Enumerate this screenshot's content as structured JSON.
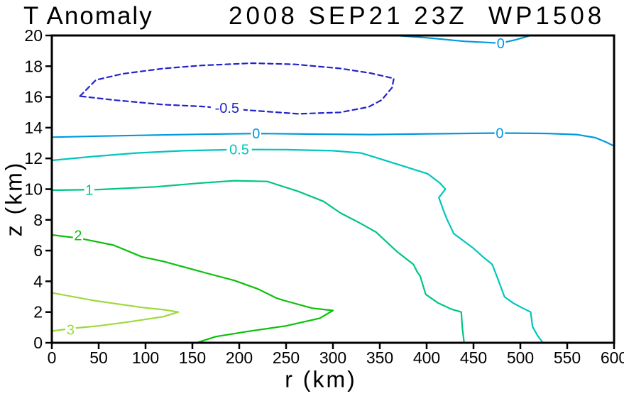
{
  "title": {
    "left": "T Anomaly",
    "right": "2008 SEP21 23Z  WP1508"
  },
  "axis_labels": {
    "x": "r (km)",
    "y": "z (km)"
  },
  "chart_data": {
    "type": "contour",
    "title": "T Anomaly",
    "subtitle": "2008 SEP21 23Z  WP1508",
    "xlabel": "r (km)",
    "ylabel": "z (km)",
    "xlim": [
      0,
      600
    ],
    "ylim": [
      0,
      20
    ],
    "xticks": [
      0,
      50,
      100,
      150,
      200,
      250,
      300,
      350,
      400,
      450,
      500,
      550,
      600
    ],
    "yticks": [
      0,
      2,
      4,
      6,
      8,
      10,
      12,
      14,
      16,
      18,
      20
    ],
    "grid": false,
    "frame_color": "#000000",
    "legend": "none",
    "levels": [
      {
        "level": -0.5,
        "color": "#2323cd",
        "style": "dashed",
        "paths": [
          [
            [
              30,
              16.05
            ],
            [
              47,
              17.1
            ],
            [
              75,
              17.5
            ],
            [
              119,
              17.85
            ],
            [
              160,
              18.05
            ],
            [
              214,
              18.2
            ],
            [
              260,
              18.12
            ],
            [
              308,
              17.85
            ],
            [
              340,
              17.55
            ],
            [
              365,
              17.2
            ],
            [
              363,
              16.6
            ],
            [
              352,
              15.8
            ],
            [
              338,
              15.35
            ],
            [
              308,
              15.0
            ],
            [
              263,
              14.9
            ],
            [
              214,
              15.12
            ],
            [
              160,
              15.38
            ],
            [
              119,
              15.5
            ],
            [
              66,
              15.8
            ],
            [
              30,
              16.05
            ]
          ]
        ],
        "labels": [
          {
            "text": "-0.5",
            "r": 187,
            "z": 15.28
          }
        ]
      },
      {
        "level": 0,
        "color": "#0099dd",
        "style": "solid",
        "paths": [
          [
            [
              0,
              13.38
            ],
            [
              50,
              13.45
            ],
            [
              110,
              13.52
            ],
            [
              160,
              13.57
            ],
            [
              218,
              13.62
            ],
            [
              280,
              13.58
            ],
            [
              340,
              13.55
            ],
            [
              400,
              13.6
            ],
            [
              478,
              13.65
            ],
            [
              530,
              13.62
            ],
            [
              560,
              13.55
            ],
            [
              580,
              13.35
            ],
            [
              592,
              13.05
            ],
            [
              600,
              12.8
            ]
          ],
          [
            [
              367,
              20
            ],
            [
              400,
              19.85
            ],
            [
              440,
              19.62
            ],
            [
              479,
              19.5
            ],
            [
              495,
              19.72
            ],
            [
              511,
              20
            ]
          ]
        ],
        "labels": [
          {
            "text": "0",
            "r": 218,
            "z": 13.62
          },
          {
            "text": "0",
            "r": 478,
            "z": 13.65
          },
          {
            "text": "0",
            "r": 479,
            "z": 19.5
          }
        ]
      },
      {
        "level": 0.5,
        "color": "#00c6bc",
        "style": "solid",
        "paths": [
          [
            [
              0,
              11.87
            ],
            [
              40,
              12.1
            ],
            [
              90,
              12.35
            ],
            [
              140,
              12.5
            ],
            [
              200,
              12.58
            ],
            [
              250,
              12.57
            ],
            [
              300,
              12.5
            ],
            [
              330,
              12.35
            ],
            [
              346,
              12.05
            ],
            [
              370,
              11.6
            ],
            [
              401,
              11.0
            ],
            [
              414,
              10.4
            ],
            [
              420,
              10.0
            ],
            [
              413,
              9.45
            ],
            [
              418,
              8.6
            ],
            [
              422,
              8.0
            ],
            [
              429,
              7.1
            ],
            [
              450,
              6.15
            ],
            [
              460,
              5.6
            ],
            [
              470,
              5.1
            ],
            [
              477,
              4.0
            ],
            [
              483,
              3.0
            ],
            [
              492,
              2.6
            ],
            [
              501,
              2.3
            ],
            [
              511,
              2.0
            ],
            [
              513,
              1.05
            ],
            [
              518,
              0.5
            ],
            [
              524,
              0
            ]
          ]
        ],
        "labels": [
          {
            "text": "0.5",
            "r": 200,
            "z": 12.58
          }
        ]
      },
      {
        "level": 1,
        "color": "#00c680",
        "style": "solid",
        "paths": [
          [
            [
              0,
              9.93
            ],
            [
              50,
              9.97
            ],
            [
              110,
              10.15
            ],
            [
              160,
              10.4
            ],
            [
              195,
              10.55
            ],
            [
              230,
              10.5
            ],
            [
              263,
              9.85
            ],
            [
              290,
              9.2
            ],
            [
              308,
              8.45
            ],
            [
              330,
              7.75
            ],
            [
              346,
              7.2
            ],
            [
              369,
              5.9
            ],
            [
              386,
              5.1
            ],
            [
              390,
              4.6
            ],
            [
              393,
              4.35
            ],
            [
              399,
              3.15
            ],
            [
              412,
              2.6
            ],
            [
              426,
              2.2
            ],
            [
              437,
              2.0
            ],
            [
              438,
              1.0
            ],
            [
              440,
              0
            ]
          ]
        ],
        "labels": [
          {
            "text": "1",
            "r": 40,
            "z": 9.95
          }
        ]
      },
      {
        "level": 2,
        "color": "#0bc00b",
        "style": "solid",
        "paths": [
          [
            [
              0,
              7.02
            ],
            [
              30,
              6.8
            ],
            [
              66,
              6.35
            ],
            [
              96,
              5.6
            ],
            [
              119,
              5.3
            ],
            [
              164,
              4.55
            ],
            [
              195,
              4.05
            ],
            [
              220,
              3.5
            ],
            [
              240,
              2.9
            ],
            [
              248,
              2.75
            ],
            [
              278,
              2.25
            ],
            [
              300,
              2.1
            ],
            [
              286,
              1.6
            ],
            [
              250,
              1.1
            ],
            [
              210,
              0.75
            ],
            [
              175,
              0.4
            ],
            [
              157,
              0.05
            ],
            [
              155,
              0
            ]
          ]
        ],
        "labels": [
          {
            "text": "2",
            "r": 28,
            "z": 7.0
          }
        ]
      },
      {
        "level": 3,
        "color": "#9ed93c",
        "style": "solid",
        "paths": [
          [
            [
              0,
              3.25
            ],
            [
              45,
              2.75
            ],
            [
              96,
              2.3
            ],
            [
              120,
              2.15
            ],
            [
              135,
              2.0
            ],
            [
              119,
              1.7
            ],
            [
              81,
              1.35
            ],
            [
              50,
              1.1
            ],
            [
              24,
              0.95
            ],
            [
              0,
              0.76
            ]
          ]
        ],
        "labels": [
          {
            "text": "3",
            "r": 20,
            "z": 0.85
          }
        ]
      }
    ]
  }
}
